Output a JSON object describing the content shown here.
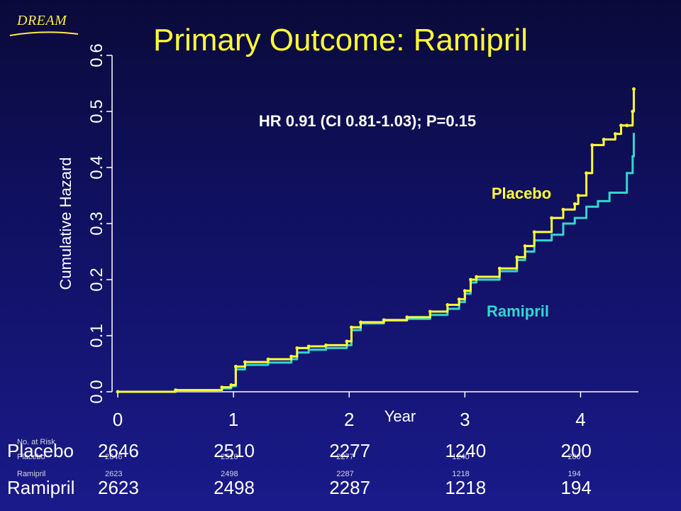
{
  "header": {
    "logo_text": "DREAM",
    "title": "Primary Outcome: Ramipril"
  },
  "colors": {
    "background": "#101060",
    "title": "#ffff33",
    "placebo": "#ffff33",
    "ramipril": "#33d6cc",
    "axis": "#ffffff"
  },
  "chart_data": {
    "type": "line",
    "title": "Primary Outcome: Ramipril",
    "xlabel": "Year",
    "ylabel": "Cumulative Hazard",
    "xlim": [
      0,
      4.5
    ],
    "ylim": [
      0,
      0.6
    ],
    "x_ticks": [
      "0",
      "1",
      "2",
      "3",
      "4"
    ],
    "y_ticks": [
      "0.0",
      "0.1",
      "0.2",
      "0.3",
      "0.4",
      "0.5",
      "0.6"
    ],
    "annotation": "HR 0.91 (CI 0.81-1.03); P=0.15",
    "series": [
      {
        "name": "Placebo",
        "color": "#ffff33",
        "x": [
          0,
          0.5,
          0.9,
          0.98,
          1.02,
          1.1,
          1.3,
          1.5,
          1.55,
          1.65,
          1.8,
          1.98,
          2.02,
          2.1,
          2.3,
          2.5,
          2.7,
          2.85,
          2.95,
          3.0,
          3.05,
          3.1,
          3.3,
          3.45,
          3.52,
          3.6,
          3.75,
          3.85,
          3.95,
          3.98,
          4.05,
          4.1,
          4.2,
          4.3,
          4.35,
          4.4,
          4.45,
          4.46
        ],
        "y": [
          0,
          0.003,
          0.008,
          0.012,
          0.045,
          0.053,
          0.058,
          0.063,
          0.078,
          0.081,
          0.083,
          0.09,
          0.115,
          0.124,
          0.128,
          0.133,
          0.143,
          0.155,
          0.165,
          0.18,
          0.2,
          0.205,
          0.22,
          0.24,
          0.26,
          0.285,
          0.31,
          0.325,
          0.335,
          0.35,
          0.39,
          0.44,
          0.45,
          0.46,
          0.475,
          0.475,
          0.5,
          0.54
        ]
      },
      {
        "name": "Ramipril",
        "color": "#33d6cc",
        "x": [
          0,
          0.5,
          0.9,
          0.98,
          1.02,
          1.1,
          1.3,
          1.5,
          1.55,
          1.65,
          1.8,
          1.98,
          2.02,
          2.1,
          2.3,
          2.5,
          2.7,
          2.85,
          2.95,
          3.0,
          3.05,
          3.1,
          3.3,
          3.45,
          3.52,
          3.6,
          3.75,
          3.85,
          3.95,
          4.05,
          4.15,
          4.25,
          4.35,
          4.4,
          4.45,
          4.46
        ],
        "y": [
          0,
          0.002,
          0.006,
          0.01,
          0.04,
          0.048,
          0.052,
          0.058,
          0.07,
          0.075,
          0.078,
          0.083,
          0.11,
          0.122,
          0.127,
          0.13,
          0.137,
          0.148,
          0.16,
          0.175,
          0.195,
          0.2,
          0.215,
          0.235,
          0.25,
          0.27,
          0.28,
          0.3,
          0.31,
          0.33,
          0.34,
          0.355,
          0.355,
          0.39,
          0.42,
          0.46
        ]
      }
    ],
    "series_labels": {
      "placebo": "Placebo",
      "ramipril": "Ramipril"
    }
  },
  "risk_table": {
    "header": "No. at Risk",
    "rows": [
      {
        "label": "Placebo",
        "values": [
          "2646",
          "2510",
          "2277",
          "1240",
          "200"
        ]
      },
      {
        "label": "Ramipril",
        "values": [
          "2623",
          "2498",
          "2287",
          "1218",
          "194"
        ]
      }
    ]
  }
}
